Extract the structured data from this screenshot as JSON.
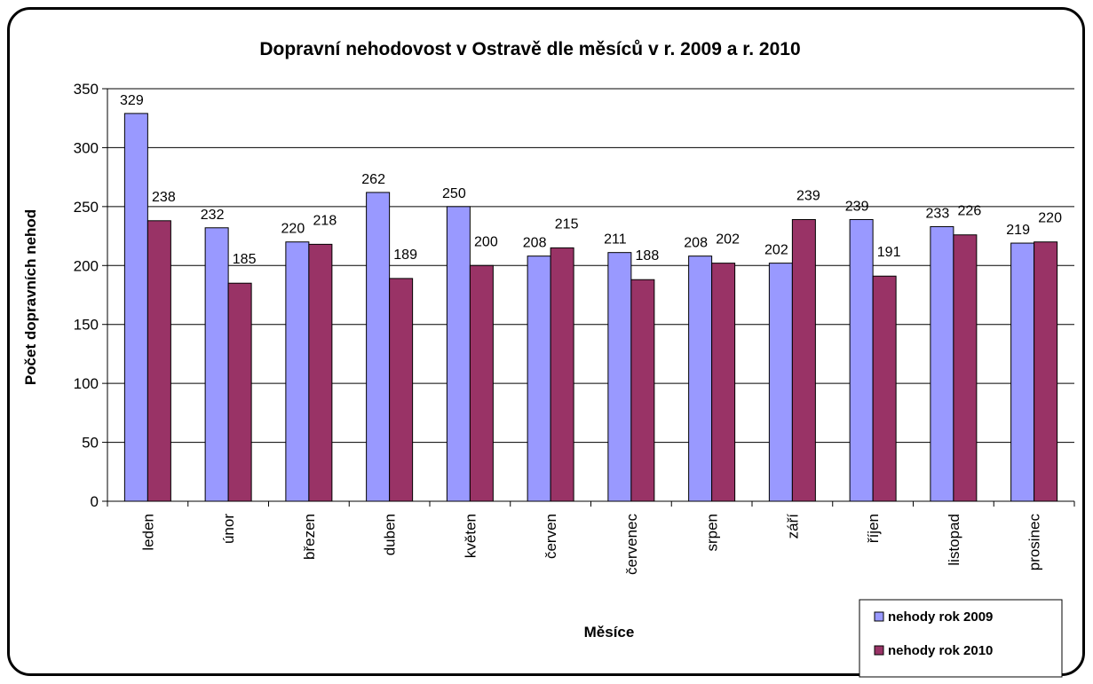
{
  "chart_data": {
    "type": "bar",
    "title": "Dopravní nehodovost v Ostravě dle měsíců v r. 2009 a r. 2010",
    "xlabel": "Měsíce",
    "ylabel": "Počet dopravních nehod",
    "ylim": [
      0,
      350
    ],
    "yticks": [
      0,
      50,
      100,
      150,
      200,
      250,
      300,
      350
    ],
    "grid": true,
    "legend_position": "bottom-right",
    "categories": [
      "leden",
      "únor",
      "březen",
      "duben",
      "květen",
      "červen",
      "červenec",
      "srpen",
      "září",
      "říjen",
      "listopad",
      "prosinec"
    ],
    "series": [
      {
        "name": "nehody rok 2009",
        "color": "#9999FF",
        "values": [
          329,
          232,
          220,
          262,
          250,
          208,
          211,
          208,
          202,
          239,
          233,
          219
        ]
      },
      {
        "name": "nehody rok 2010",
        "color": "#993366",
        "values": [
          238,
          185,
          218,
          189,
          200,
          215,
          188,
          202,
          239,
          191,
          226,
          220
        ]
      }
    ]
  }
}
